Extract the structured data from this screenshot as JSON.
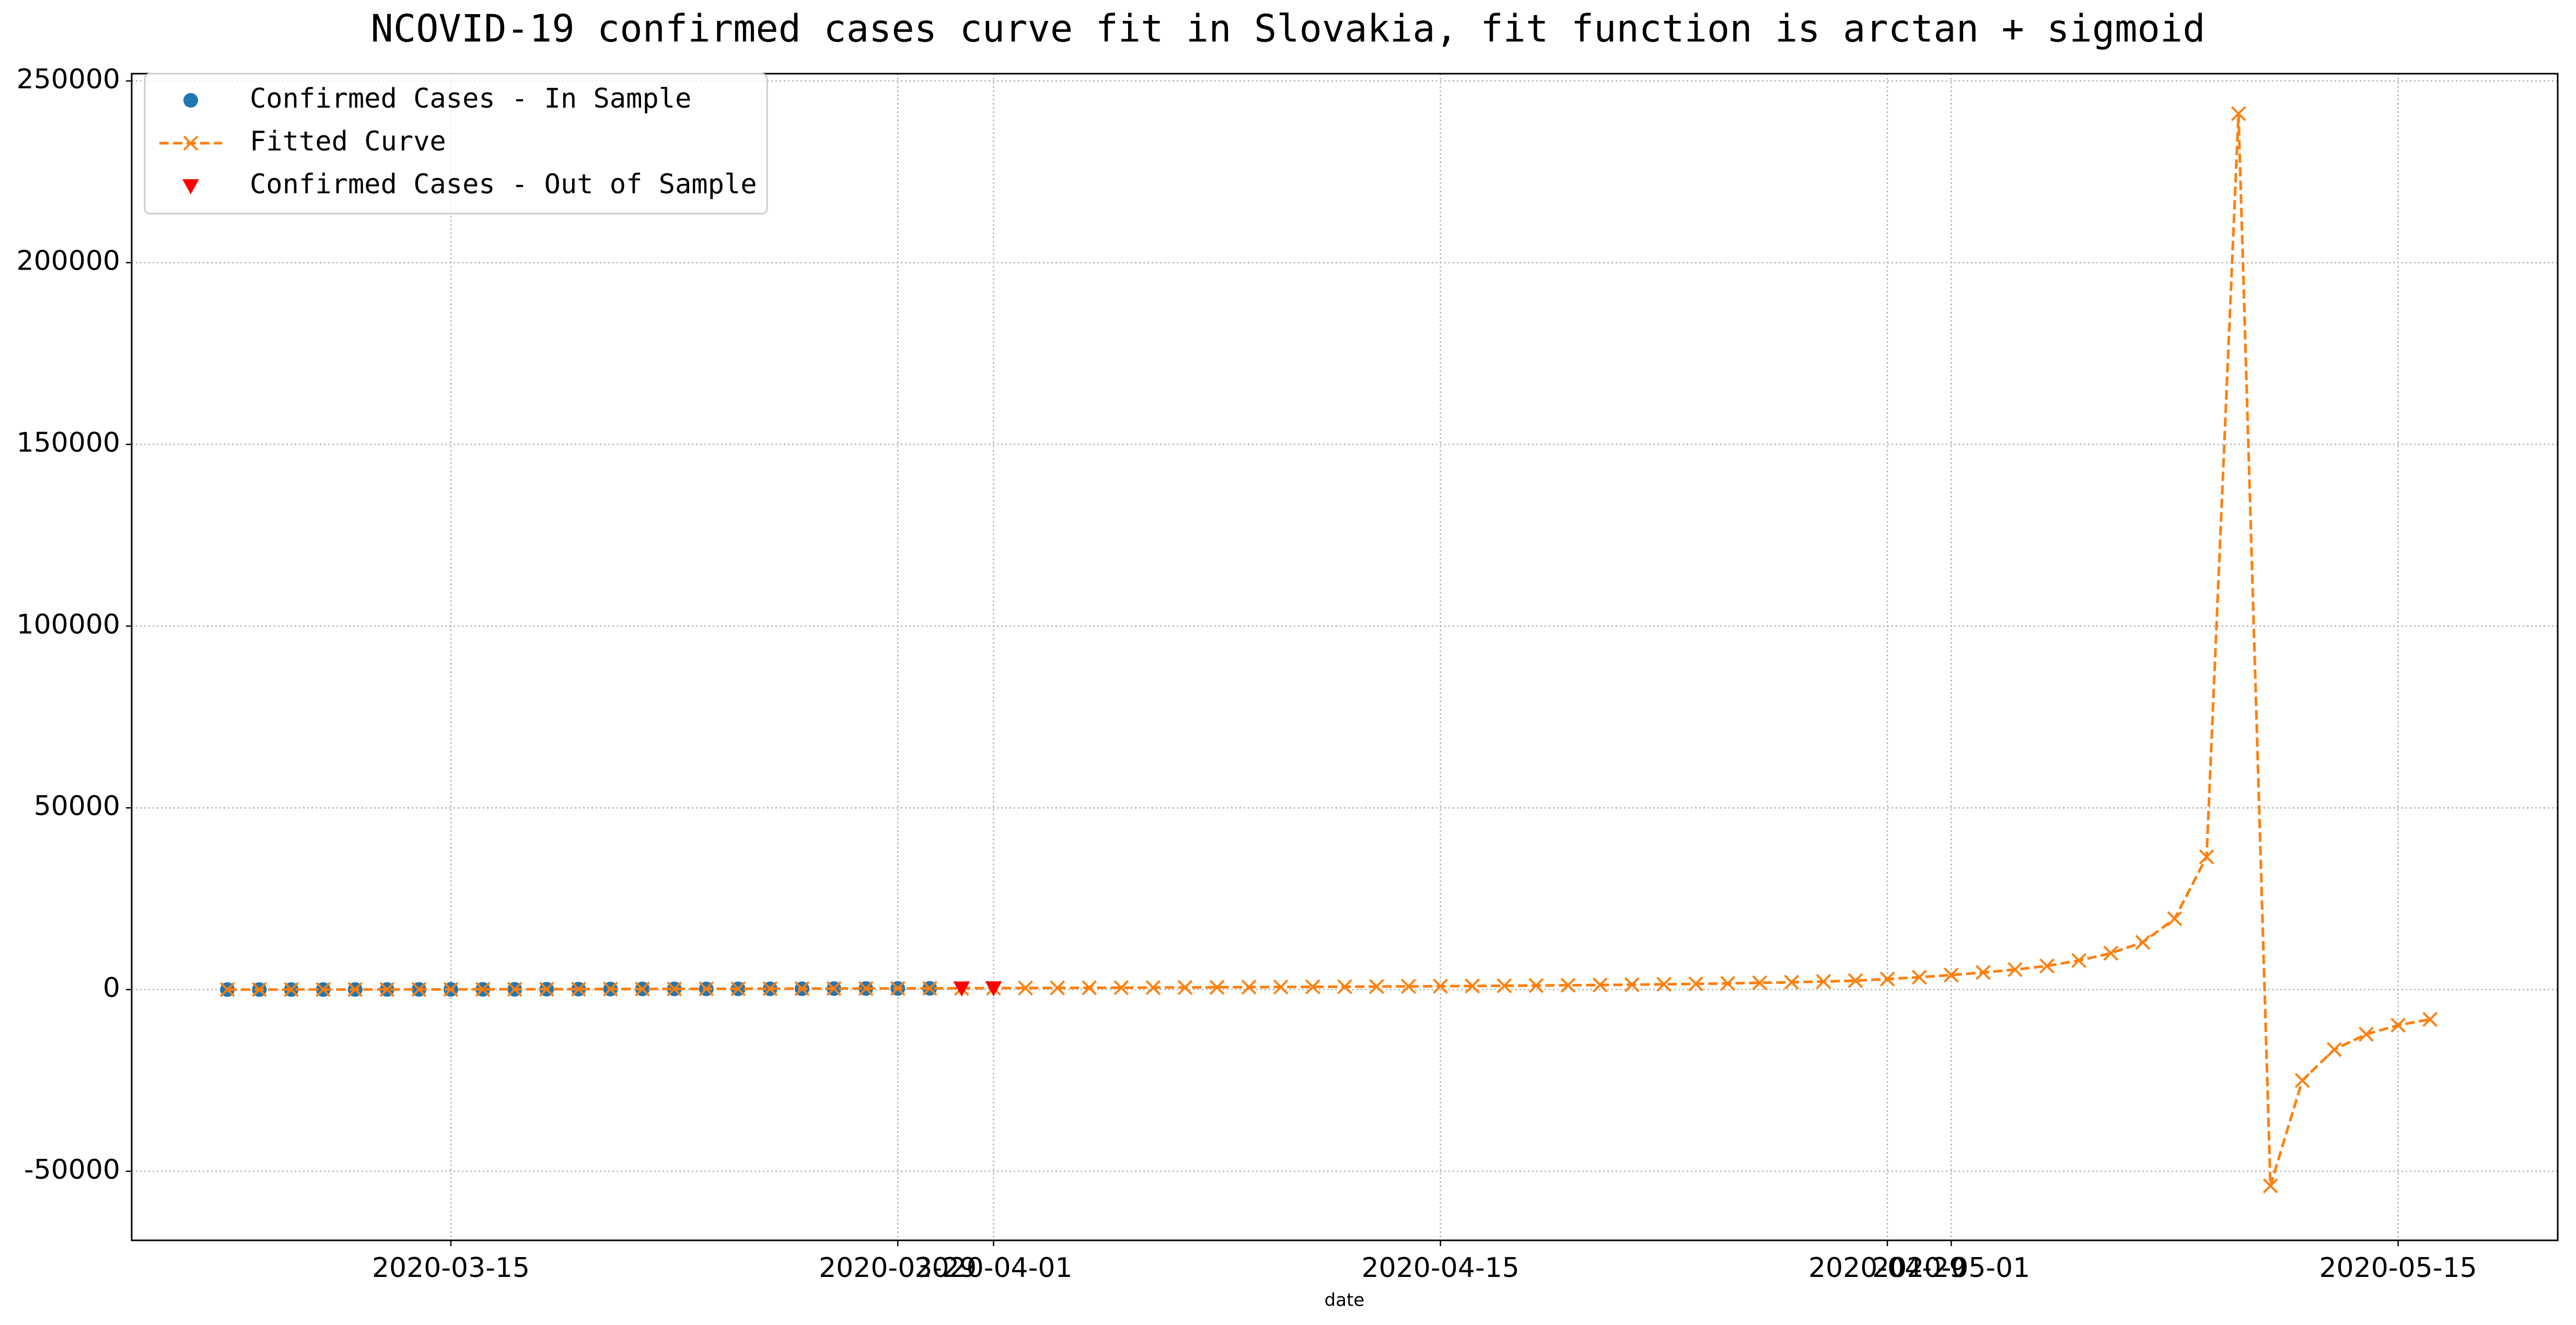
{
  "chart_data": {
    "type": "line",
    "title": "NCOVID-19 confirmed cases curve fit in Slovakia, fit function is arctan + sigmoid",
    "xlabel": "date",
    "xlim": [
      "2020-03-05",
      "2020-05-20"
    ],
    "xticks": [
      "2020-03-15",
      "2020-03-29",
      "2020-04-01",
      "2020-04-15",
      "2020-04-29",
      "2020-05-01",
      "2020-05-15"
    ],
    "ylim": [
      -69000,
      252000
    ],
    "yticks": [
      -50000,
      0,
      50000,
      100000,
      150000,
      200000,
      250000
    ],
    "grid": true,
    "legend": "upper left",
    "series": [
      {
        "name": "Confirmed Cases - In Sample",
        "color": "#1f77b4",
        "marker": "o",
        "linestyle": "none",
        "x": [
          "2020-03-08",
          "2020-03-09",
          "2020-03-10",
          "2020-03-11",
          "2020-03-12",
          "2020-03-13",
          "2020-03-14",
          "2020-03-15",
          "2020-03-16",
          "2020-03-17",
          "2020-03-18",
          "2020-03-19",
          "2020-03-20",
          "2020-03-21",
          "2020-03-22",
          "2020-03-23",
          "2020-03-24",
          "2020-03-25",
          "2020-03-26",
          "2020-03-27",
          "2020-03-28",
          "2020-03-29",
          "2020-03-30"
        ],
        "values": [
          5,
          7,
          7,
          10,
          21,
          32,
          44,
          54,
          63,
          72,
          105,
          123,
          137,
          178,
          185,
          186,
          204,
          216,
          226,
          269,
          292,
          314,
          336
        ]
      },
      {
        "name": "Fitted Curve",
        "color": "#ff7f0e",
        "marker": "x",
        "linestyle": "dashed",
        "x": [
          "2020-03-08",
          "2020-03-09",
          "2020-03-10",
          "2020-03-11",
          "2020-03-12",
          "2020-03-13",
          "2020-03-14",
          "2020-03-15",
          "2020-03-16",
          "2020-03-17",
          "2020-03-18",
          "2020-03-19",
          "2020-03-20",
          "2020-03-21",
          "2020-03-22",
          "2020-03-23",
          "2020-03-24",
          "2020-03-25",
          "2020-03-26",
          "2020-03-27",
          "2020-03-28",
          "2020-03-29",
          "2020-03-30",
          "2020-03-31",
          "2020-04-01",
          "2020-04-02",
          "2020-04-03",
          "2020-04-04",
          "2020-04-05",
          "2020-04-06",
          "2020-04-07",
          "2020-04-08",
          "2020-04-09",
          "2020-04-10",
          "2020-04-11",
          "2020-04-12",
          "2020-04-13",
          "2020-04-14",
          "2020-04-15",
          "2020-04-16",
          "2020-04-17",
          "2020-04-18",
          "2020-04-19",
          "2020-04-20",
          "2020-04-21",
          "2020-04-22",
          "2020-04-23",
          "2020-04-24",
          "2020-04-25",
          "2020-04-26",
          "2020-04-27",
          "2020-04-28",
          "2020-04-29",
          "2020-04-30",
          "2020-05-01",
          "2020-05-02",
          "2020-05-03",
          "2020-05-04",
          "2020-05-05",
          "2020-05-06",
          "2020-05-07",
          "2020-05-08",
          "2020-05-09",
          "2020-05-10",
          "2020-05-11",
          "2020-05-12",
          "2020-05-13",
          "2020-05-14",
          "2020-05-15",
          "2020-05-16"
        ],
        "values": [
          5,
          8,
          12,
          17,
          24,
          33,
          44,
          57,
          72,
          88,
          106,
          124,
          143,
          162,
          182,
          201,
          220,
          239,
          258,
          277,
          296,
          315,
          334,
          353,
          400,
          430,
          460,
          490,
          520,
          555,
          590,
          625,
          665,
          705,
          745,
          790,
          835,
          880,
          930,
          985,
          1045,
          1110,
          1185,
          1265,
          1355,
          1455,
          1570,
          1700,
          1850,
          2020,
          2220,
          2450,
          2900,
          3400,
          4000,
          4700,
          5500,
          6500,
          8000,
          10000,
          13000,
          19500,
          36500,
          241000,
          -54000,
          -25000,
          -16500,
          -12300,
          -9800,
          -8200
        ]
      },
      {
        "name": "Confirmed Cases - Out of Sample",
        "color": "red",
        "marker": "v",
        "linestyle": "none",
        "x": [
          "2020-03-31",
          "2020-04-01"
        ],
        "values": [
          363,
          400
        ]
      }
    ]
  }
}
